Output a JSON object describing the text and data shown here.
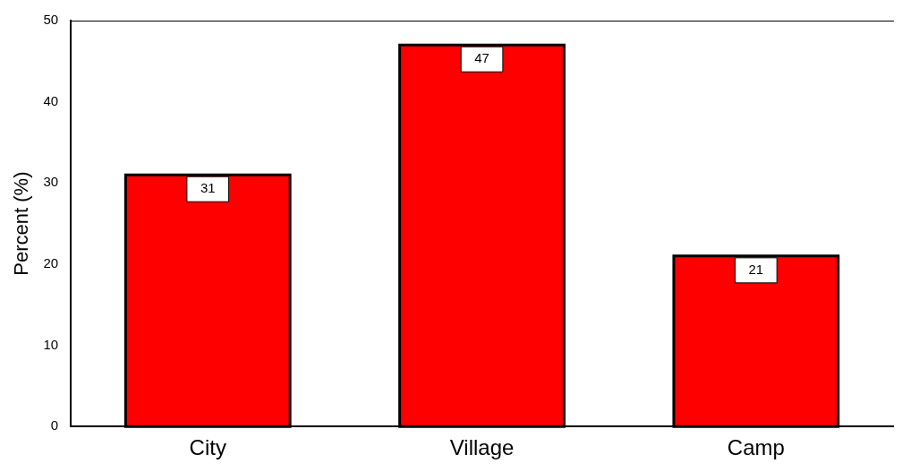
{
  "chart_data": {
    "type": "bar",
    "ylabel": "Percent (%)",
    "categories": [
      "City",
      "Village",
      "Camp"
    ],
    "values": [
      31,
      47,
      21
    ],
    "color": "#ff0000",
    "ylim": [
      0,
      50
    ],
    "yticks": [
      0,
      10,
      20,
      30,
      40,
      50
    ],
    "grid": false,
    "legend": false,
    "data_labels": true
  }
}
